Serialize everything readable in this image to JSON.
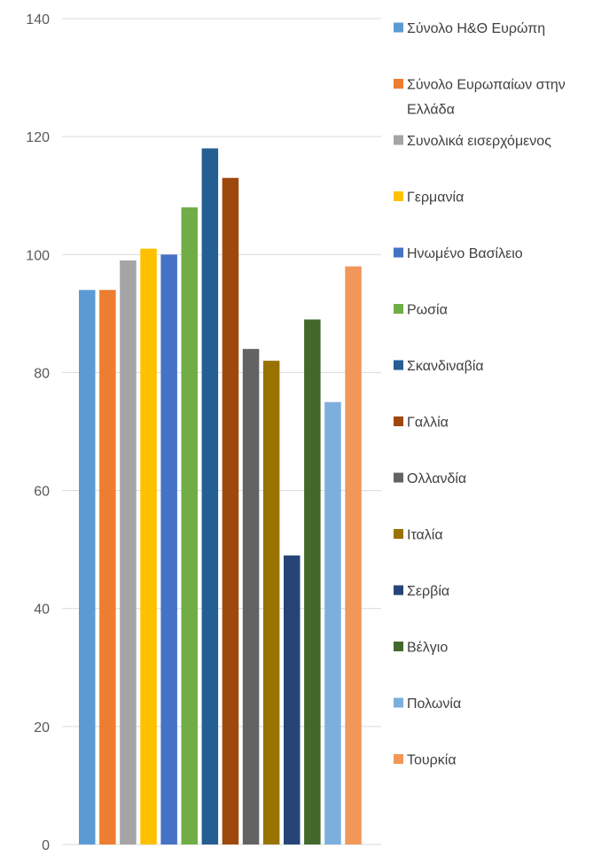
{
  "chart_data": {
    "type": "bar",
    "title": "",
    "xlabel": "",
    "ylabel": "",
    "ylim": [
      0,
      140
    ],
    "yticks": [
      0,
      20,
      40,
      60,
      80,
      100,
      120,
      140
    ],
    "grid": true,
    "legend_position": "right",
    "series": [
      {
        "name": "Σύνολο Η&Θ Ευρώπη",
        "value": 94,
        "color": "#5B9BD5"
      },
      {
        "name": "Σύνολο Ευρωπαίων στην Ελλάδα",
        "value": 94,
        "color": "#ED7D31",
        "legend_lines": [
          "Σύνολο Ευρωπαίων στην",
          "Ελλάδα"
        ]
      },
      {
        "name": "Συνολικά εισερχόμενος",
        "value": 99,
        "color": "#A5A5A5"
      },
      {
        "name": "Γερμανία",
        "value": 101,
        "color": "#FFC000"
      },
      {
        "name": "Ηνωμένο Βασίλειο",
        "value": 100,
        "color": "#4472C4"
      },
      {
        "name": "Ρωσία",
        "value": 108,
        "color": "#70AD47"
      },
      {
        "name": "Σκανδιναβία",
        "value": 118,
        "color": "#255E91"
      },
      {
        "name": "Γαλλία",
        "value": 113,
        "color": "#9E480E"
      },
      {
        "name": "Ολλανδία",
        "value": 84,
        "color": "#636363"
      },
      {
        "name": "Ιταλία",
        "value": 82,
        "color": "#997300"
      },
      {
        "name": "Σερβία",
        "value": 49,
        "color": "#264478"
      },
      {
        "name": "Βέλγιο",
        "value": 89,
        "color": "#43682B"
      },
      {
        "name": "Πολωνία",
        "value": 75,
        "color": "#7CAFDD"
      },
      {
        "name": "Τουρκία",
        "value": 98,
        "color": "#F1975A"
      }
    ]
  }
}
